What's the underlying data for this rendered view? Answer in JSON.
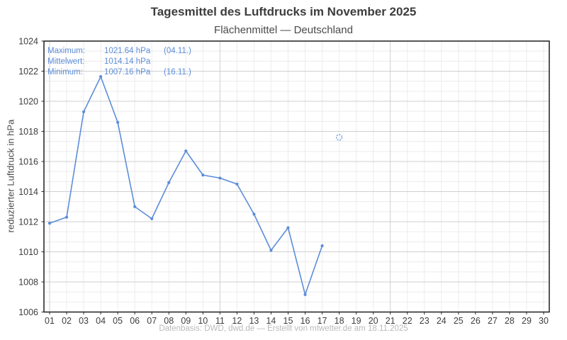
{
  "header": {
    "title": "Tagesmittel des Luftdrucks im November 2025",
    "subtitle": "Flächenmittel — Deutschland"
  },
  "stats": {
    "rows": [
      {
        "label": "Maximum:",
        "value": "1021.64 hPa",
        "date": "(04.11.)"
      },
      {
        "label": "Mittelwert:",
        "value": "1014.14 hPa",
        "date": ""
      },
      {
        "label": "Minimum:",
        "value": "1007.16 hPa",
        "date": "(16.11.)"
      }
    ]
  },
  "footer": {
    "text": "Datenbasis: DWD, dwd.de — Erstellt von mtwetter.de am 18.11.2025"
  },
  "chart_data": {
    "type": "line",
    "title": "Tagesmittel des Luftdrucks im November 2025",
    "subtitle": "Flächenmittel — Deutschland",
    "xlabel": "",
    "ylabel": "reduzierter Luftdruck in hPa",
    "x": [
      1,
      2,
      3,
      4,
      5,
      6,
      7,
      8,
      9,
      10,
      11,
      12,
      13,
      14,
      15,
      16,
      17
    ],
    "values": [
      1011.9,
      1012.3,
      1019.3,
      1021.64,
      1018.6,
      1013.0,
      1012.2,
      1014.6,
      1016.7,
      1015.1,
      1014.9,
      1014.5,
      1012.5,
      1010.1,
      1011.6,
      1007.16,
      1010.4
    ],
    "extra_point": {
      "x": 18,
      "value": 1017.6,
      "style": "open-dashed-circle"
    },
    "max": {
      "value": 1021.64,
      "day": "04.11."
    },
    "mean": {
      "value": 1014.14
    },
    "min": {
      "value": 1007.16,
      "day": "16.11."
    },
    "x_ticks": [
      "01",
      "02",
      "03",
      "04",
      "05",
      "06",
      "07",
      "08",
      "09",
      "10",
      "11",
      "12",
      "13",
      "14",
      "15",
      "16",
      "17",
      "18",
      "19",
      "20",
      "21",
      "22",
      "23",
      "24",
      "25",
      "26",
      "27",
      "28",
      "29",
      "30"
    ],
    "y_ticks": [
      "1006",
      "1008",
      "1010",
      "1012",
      "1014",
      "1016",
      "1018",
      "1020",
      "1022",
      "1024"
    ],
    "ylim": [
      1006,
      1024
    ],
    "y_major_step": 2,
    "y_minor_divisions": 3,
    "x_major_days": [
      1,
      11,
      21
    ],
    "grid": true,
    "legend": "none",
    "colors": {
      "line": "#5c8dd9",
      "stats_text": "#5c8dd9",
      "title": "#3d3d3d",
      "subtitle": "#4a4a4a",
      "tick_label": "#3d3d3d",
      "footer": "#b9b9b9",
      "grid_minor": "#ececec",
      "grid_major": "#cfcfcf",
      "border": "#1f1f1f"
    }
  }
}
